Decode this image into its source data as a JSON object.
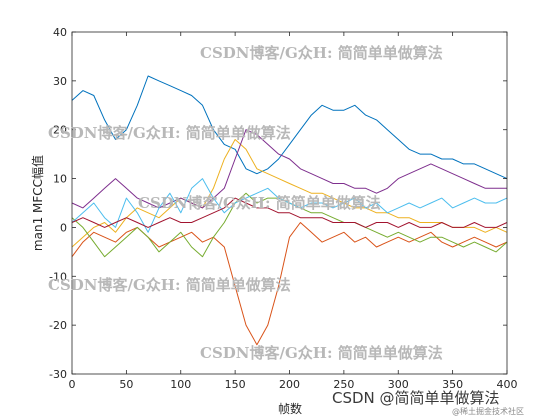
{
  "chart_data": {
    "type": "line",
    "title": "",
    "xlabel": "帧数",
    "ylabel": "man1 MFCC幅值",
    "xlim": [
      0,
      400
    ],
    "ylim": [
      -30,
      40
    ],
    "xticks": [
      "0",
      "50",
      "100",
      "150",
      "200",
      "250",
      "300",
      "350",
      "400"
    ],
    "yticks": [
      "-30",
      "-20",
      "-10",
      "0",
      "10",
      "20",
      "30",
      "40"
    ],
    "grid": false,
    "legend": "none",
    "series": [
      {
        "color": "#0072BD",
        "x": [
          0,
          10,
          20,
          30,
          40,
          50,
          60,
          70,
          80,
          90,
          100,
          110,
          120,
          130,
          140,
          150,
          160,
          170,
          180,
          190,
          200,
          210,
          220,
          230,
          240,
          250,
          260,
          270,
          280,
          290,
          300,
          310,
          320,
          330,
          340,
          350,
          360,
          370,
          380,
          390,
          400
        ],
        "y": [
          26,
          28,
          27,
          22,
          18,
          20,
          25,
          31,
          30,
          29,
          28,
          27,
          25,
          20,
          17,
          16,
          12,
          11,
          12,
          14,
          17,
          20,
          23,
          25,
          24,
          24,
          25,
          23,
          22,
          20,
          18,
          16,
          15,
          15,
          14,
          14,
          13,
          13,
          12,
          11,
          10
        ]
      },
      {
        "color": "#D95319",
        "x": [
          0,
          10,
          20,
          30,
          40,
          50,
          60,
          70,
          80,
          90,
          100,
          110,
          120,
          130,
          140,
          150,
          160,
          170,
          180,
          190,
          200,
          210,
          220,
          230,
          240,
          250,
          260,
          270,
          280,
          290,
          300,
          310,
          320,
          330,
          340,
          350,
          360,
          370,
          380,
          390,
          400
        ],
        "y": [
          -6,
          -3,
          -1,
          -2,
          -3,
          -1,
          0,
          -2,
          -4,
          -3,
          -2,
          -1,
          -3,
          -2,
          -4,
          -12,
          -20,
          -24,
          -20,
          -12,
          -2,
          1,
          -1,
          -3,
          -2,
          -1,
          -3,
          -2,
          -4,
          -3,
          -2,
          -3,
          -2,
          -1,
          -3,
          -4,
          -3,
          -2,
          -3,
          -4,
          -3
        ]
      },
      {
        "color": "#EDB120",
        "x": [
          0,
          10,
          20,
          30,
          40,
          50,
          60,
          70,
          80,
          90,
          100,
          110,
          120,
          130,
          140,
          150,
          160,
          170,
          180,
          190,
          200,
          210,
          220,
          230,
          240,
          250,
          260,
          270,
          280,
          290,
          300,
          310,
          320,
          330,
          340,
          350,
          360,
          370,
          380,
          390,
          400
        ],
        "y": [
          -4,
          -2,
          0,
          1,
          -1,
          2,
          4,
          3,
          2,
          4,
          6,
          5,
          4,
          8,
          14,
          18,
          16,
          12,
          11,
          10,
          9,
          8,
          7,
          7,
          6,
          5,
          4,
          4,
          3,
          3,
          2,
          2,
          1,
          1,
          1,
          0,
          0,
          0,
          -1,
          0,
          -1
        ]
      },
      {
        "color": "#7E2F8E",
        "x": [
          0,
          10,
          20,
          30,
          40,
          50,
          60,
          70,
          80,
          90,
          100,
          110,
          120,
          130,
          140,
          150,
          160,
          170,
          180,
          190,
          200,
          210,
          220,
          230,
          240,
          250,
          260,
          270,
          280,
          290,
          300,
          310,
          320,
          330,
          340,
          350,
          360,
          370,
          380,
          390,
          400
        ],
        "y": [
          5,
          4,
          6,
          8,
          10,
          8,
          6,
          5,
          4,
          5,
          6,
          5,
          4,
          6,
          8,
          14,
          20,
          19,
          17,
          15,
          14,
          12,
          11,
          10,
          9,
          9,
          8,
          8,
          7,
          8,
          10,
          11,
          12,
          13,
          12,
          11,
          10,
          9,
          8,
          8,
          8
        ]
      },
      {
        "color": "#77AC30",
        "x": [
          0,
          10,
          20,
          30,
          40,
          50,
          60,
          70,
          80,
          90,
          100,
          110,
          120,
          130,
          140,
          150,
          160,
          170,
          180,
          190,
          200,
          210,
          220,
          230,
          240,
          250,
          260,
          270,
          280,
          290,
          300,
          310,
          320,
          330,
          340,
          350,
          360,
          370,
          380,
          390,
          400
        ],
        "y": [
          2,
          0,
          -3,
          -6,
          -4,
          -2,
          0,
          -2,
          -5,
          -3,
          -1,
          -4,
          -6,
          -2,
          1,
          5,
          7,
          5,
          6,
          6,
          5,
          4,
          3,
          3,
          2,
          1,
          1,
          0,
          -1,
          -2,
          -1,
          -2,
          -3,
          -2,
          -2,
          -3,
          -4,
          -3,
          -4,
          -5,
          -3
        ]
      },
      {
        "color": "#4DBEEE",
        "x": [
          0,
          10,
          20,
          30,
          40,
          50,
          60,
          70,
          80,
          90,
          100,
          110,
          120,
          130,
          140,
          150,
          160,
          170,
          180,
          190,
          200,
          210,
          220,
          230,
          240,
          250,
          260,
          270,
          280,
          290,
          300,
          310,
          320,
          330,
          340,
          350,
          360,
          370,
          380,
          390,
          400
        ],
        "y": [
          1,
          3,
          5,
          2,
          0,
          6,
          3,
          -1,
          4,
          7,
          3,
          8,
          10,
          6,
          3,
          5,
          6,
          7,
          8,
          6,
          5,
          4,
          5,
          5,
          4,
          5,
          6,
          4,
          5,
          3,
          4,
          5,
          4,
          5,
          6,
          4,
          5,
          6,
          5,
          5,
          6
        ]
      },
      {
        "color": "#A2142F",
        "x": [
          0,
          10,
          20,
          30,
          40,
          50,
          60,
          70,
          80,
          90,
          100,
          110,
          120,
          130,
          140,
          150,
          160,
          170,
          180,
          190,
          200,
          210,
          220,
          230,
          240,
          250,
          260,
          270,
          280,
          290,
          300,
          310,
          320,
          330,
          340,
          350,
          360,
          370,
          380,
          390,
          400
        ],
        "y": [
          1,
          2,
          1,
          0,
          1,
          2,
          1,
          0,
          1,
          2,
          1,
          1,
          2,
          3,
          4,
          6,
          5,
          4,
          4,
          3,
          3,
          2,
          2,
          2,
          1,
          1,
          1,
          0,
          1,
          1,
          0,
          1,
          0,
          0,
          1,
          0,
          0,
          1,
          0,
          0,
          1
        ]
      }
    ]
  },
  "watermarks": {
    "top": "CSDN博客/G众H: 简简单单做算法",
    "upper_left": "CSDN博客/G众H: 简简单单做算法",
    "middle": "CSDN博客/G众H: 简简单单做算法",
    "lower_left": "CSDN博客/G众H: 简简单单做算法",
    "bottom": "CSDN博客/G众H: 简简单单做算法",
    "credit": "CSDN @简简单单做算法",
    "credit_small": "@稀土掘金技术社区"
  }
}
